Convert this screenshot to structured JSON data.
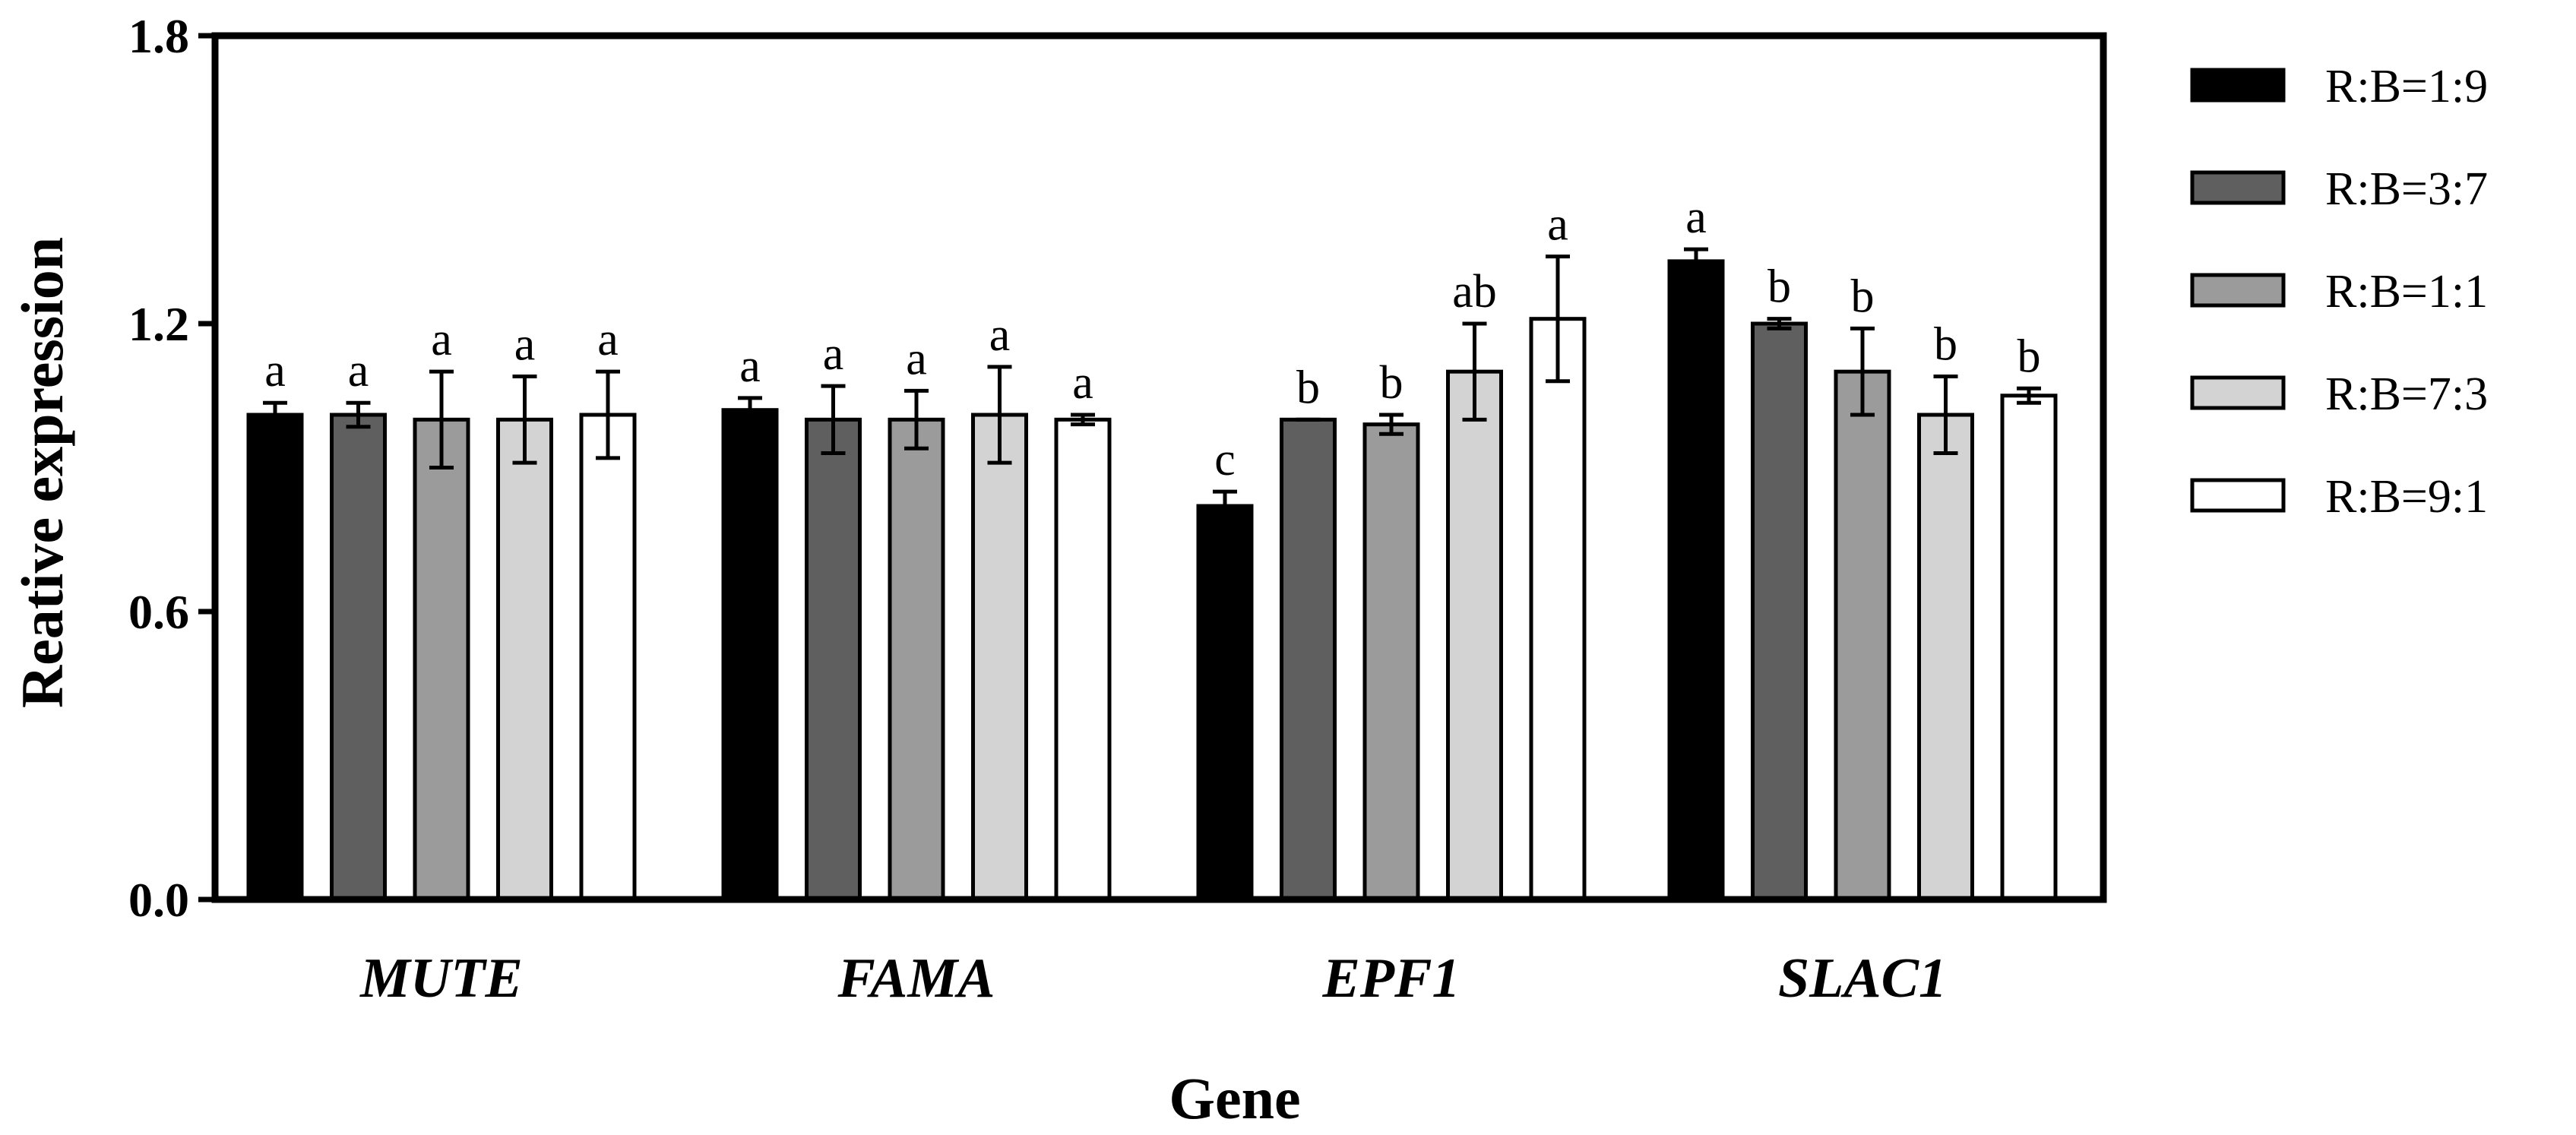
{
  "chart_data": {
    "type": "bar",
    "title": "",
    "xlabel": "Gene",
    "ylabel": "Reative expression",
    "ylim": [
      0,
      1.8
    ],
    "yticks": [
      "0.0",
      "0.6",
      "1.2",
      "1.8"
    ],
    "categories": [
      "MUTE",
      "FAMA",
      "EPF1",
      "SLAC1"
    ],
    "legend_position": "right",
    "series": [
      {
        "name": "R:B=1:9",
        "color": "#000000",
        "values": [
          1.01,
          1.02,
          0.82,
          1.33
        ],
        "errors": [
          0.025,
          0.025,
          0.03,
          0.025
        ],
        "labels": [
          "a",
          "a",
          "c",
          "a"
        ]
      },
      {
        "name": "R:B=3:7",
        "color": "#5f5f5f",
        "values": [
          1.01,
          1.0,
          1.0,
          1.2
        ],
        "errors": [
          0.025,
          0.07,
          0.0,
          0.01
        ],
        "labels": [
          "a",
          "a",
          "b",
          "b"
        ]
      },
      {
        "name": "R:B=1:1",
        "color": "#9b9b9b",
        "values": [
          1.0,
          1.0,
          0.99,
          1.1
        ],
        "errors": [
          0.1,
          0.06,
          0.02,
          0.09
        ],
        "labels": [
          "a",
          "a",
          "b",
          "b"
        ]
      },
      {
        "name": "R:B=7:3",
        "color": "#d3d3d3",
        "values": [
          1.0,
          1.01,
          1.1,
          1.01
        ],
        "errors": [
          0.09,
          0.1,
          0.1,
          0.08
        ],
        "labels": [
          "a",
          "a",
          "ab",
          "b"
        ]
      },
      {
        "name": "R:B=9:1",
        "color": "#ffffff",
        "values": [
          1.01,
          1.0,
          1.21,
          1.05
        ],
        "errors": [
          0.09,
          0.01,
          0.13,
          0.015
        ],
        "labels": [
          "a",
          "a",
          "a",
          "b"
        ]
      }
    ]
  }
}
